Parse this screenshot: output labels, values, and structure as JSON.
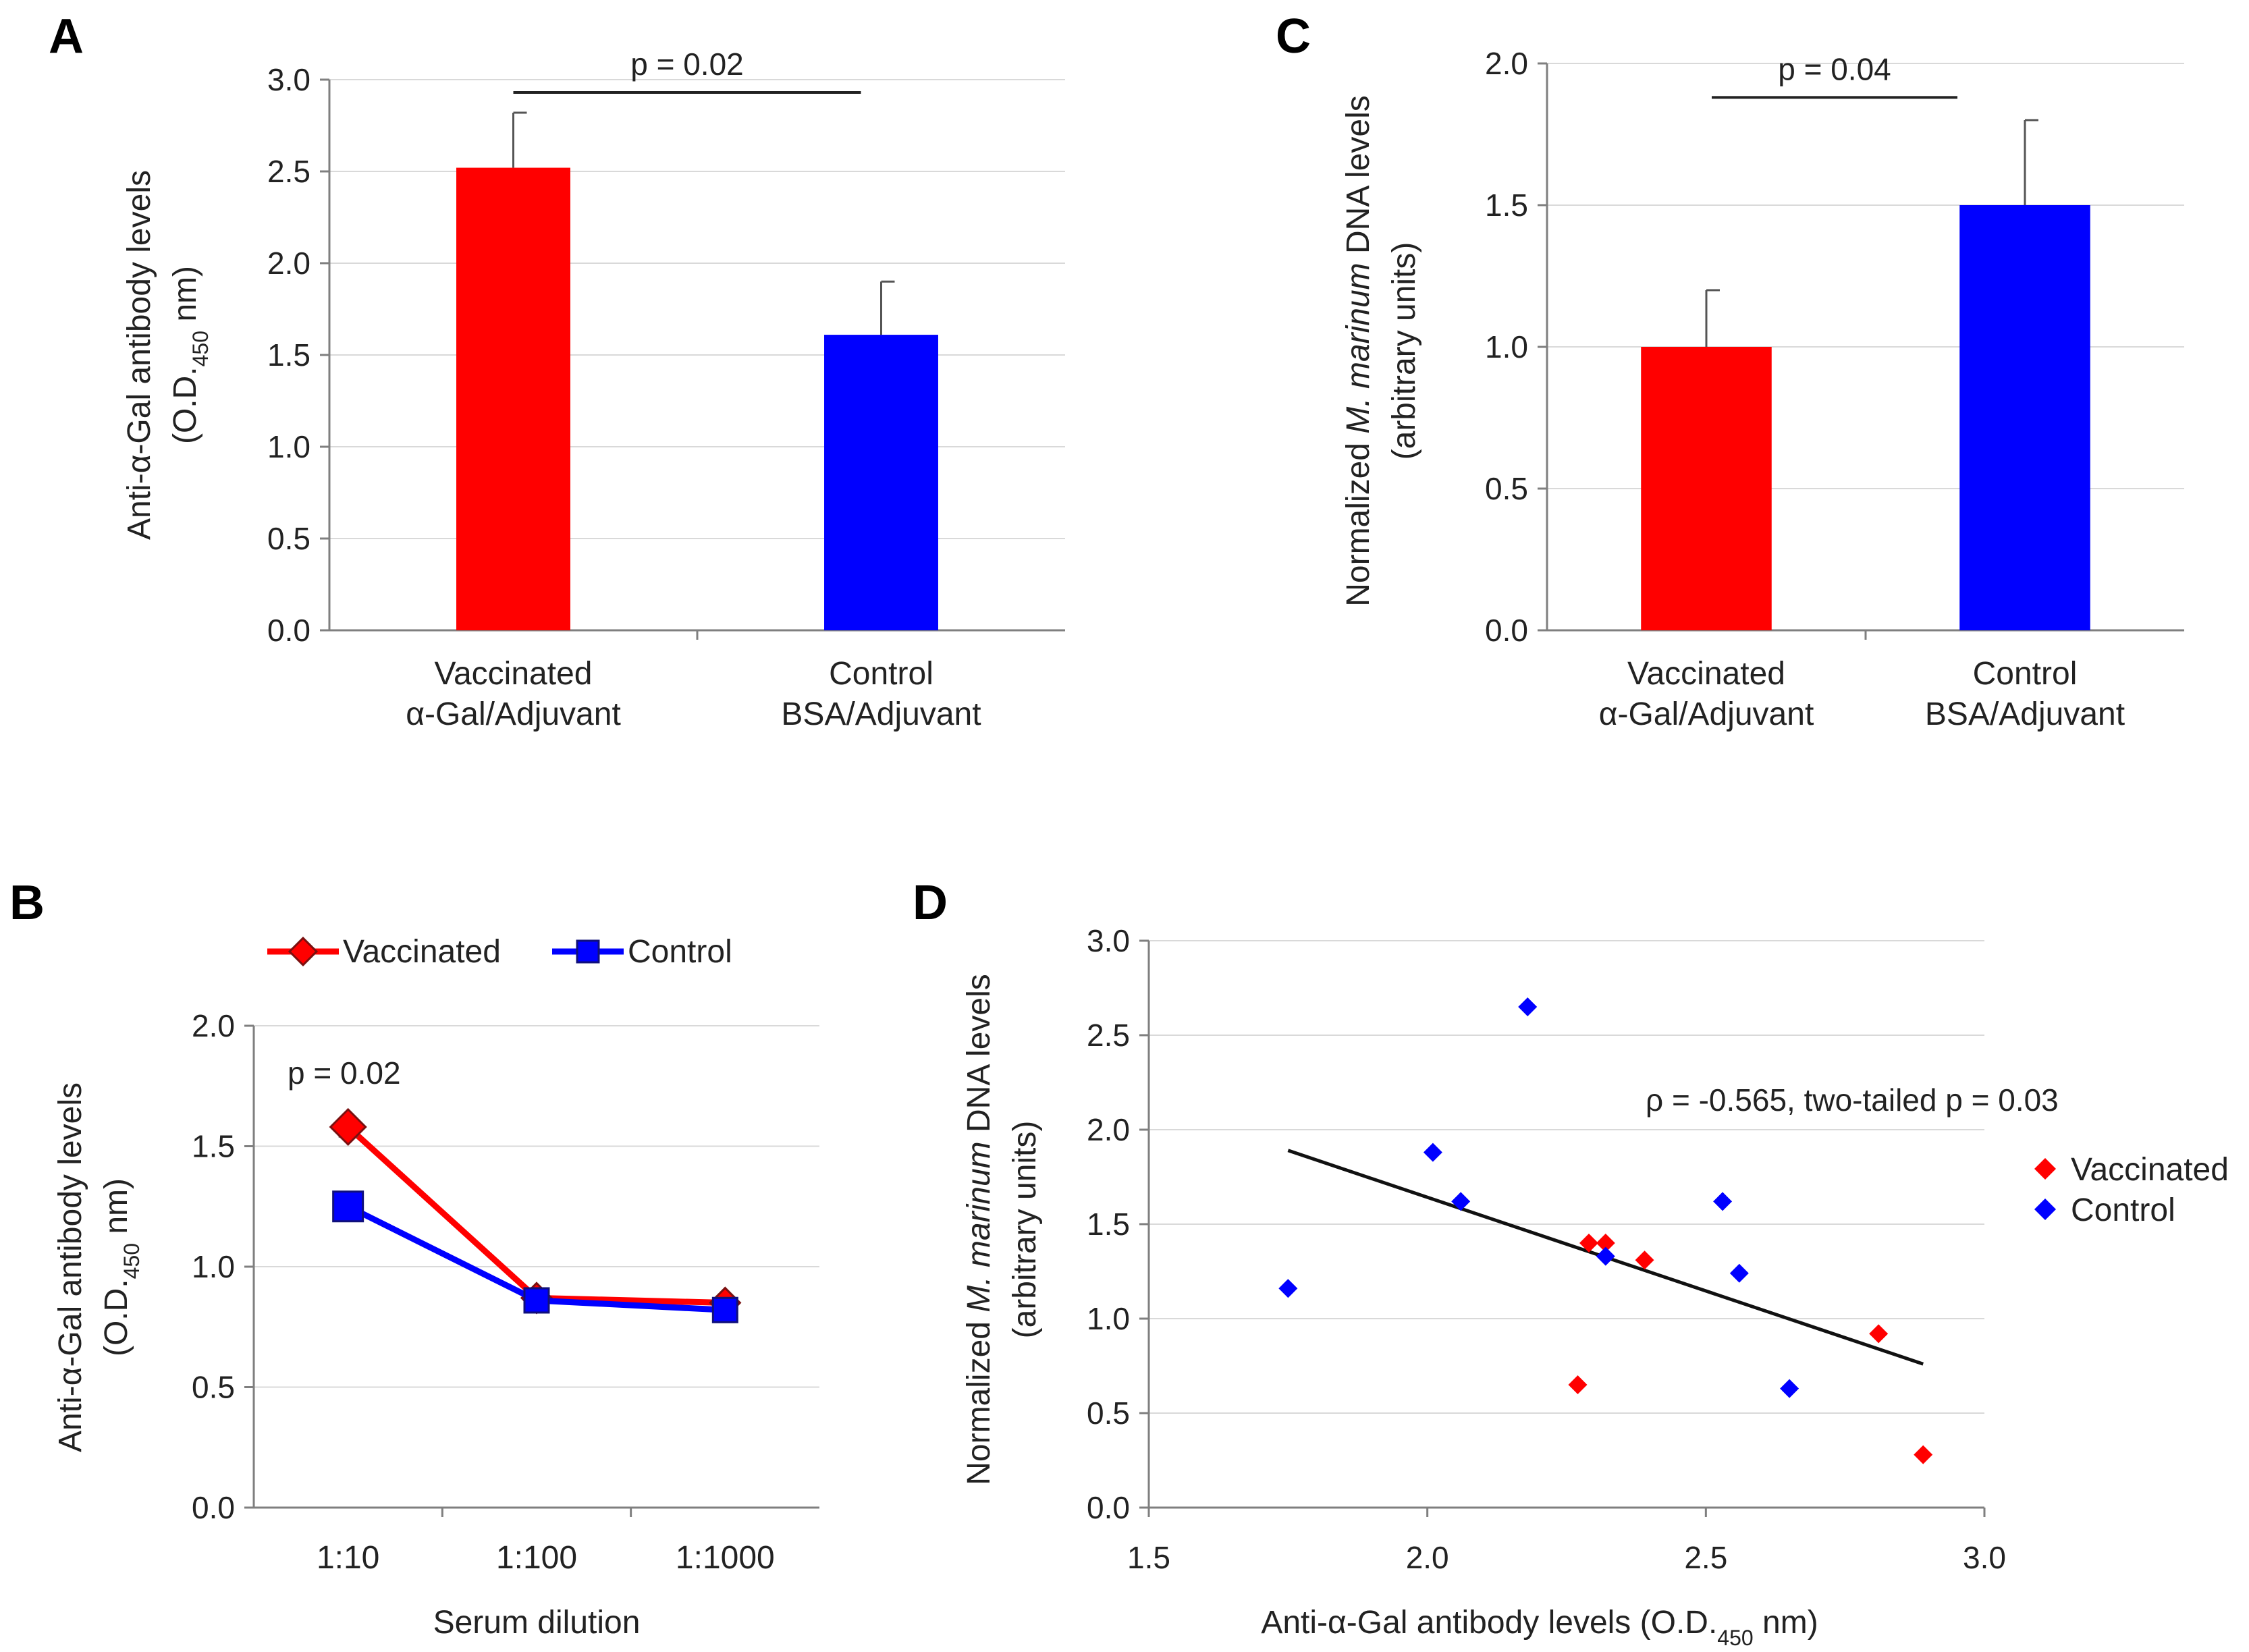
{
  "chart_data": [
    {
      "panel": "A",
      "type": "bar",
      "categories": [
        {
          "line1": "Vaccinated",
          "line2": "α-Gal/Adjuvant"
        },
        {
          "line1": "Control",
          "line2": "BSA/Adjuvant"
        }
      ],
      "values": [
        2.52,
        1.61
      ],
      "errors": [
        0.3,
        0.29
      ],
      "colors": [
        "#ff0000",
        "#0000ff"
      ],
      "ylim": [
        0,
        3.0
      ],
      "yticks": [
        "0.0",
        "0.5",
        "1.0",
        "1.5",
        "2.0",
        "2.5",
        "3.0"
      ],
      "ylabel_line1": "Anti-α-Gal antibody levels",
      "ylabel_line2_pre": "(O.D.",
      "ylabel_line2_sub": "450",
      "ylabel_line2_post": " nm)",
      "annotation": "p = 0.02",
      "grid": true
    },
    {
      "panel": "C",
      "type": "bar",
      "categories": [
        {
          "line1": "Vaccinated",
          "line2": "α-Gal/Adjuvant"
        },
        {
          "line1": "Control",
          "line2": "BSA/Adjuvant"
        }
      ],
      "values": [
        1.0,
        1.5
      ],
      "errors": [
        0.2,
        0.3
      ],
      "colors": [
        "#ff0000",
        "#0000ff"
      ],
      "ylim": [
        0,
        2.0
      ],
      "yticks": [
        "0.0",
        "0.5",
        "1.0",
        "1.5",
        "2.0"
      ],
      "ylabel_line1_pre": "Normalized ",
      "ylabel_line1_em": "M. marinum",
      "ylabel_line1_post": " DNA levels",
      "ylabel_line2": "(arbitrary units)",
      "annotation": "p = 0.04",
      "grid": true
    },
    {
      "panel": "B",
      "type": "line",
      "categories": [
        "1:10",
        "1:100",
        "1:1000"
      ],
      "series": [
        {
          "name": "Vaccinated",
          "values": [
            1.58,
            0.87,
            0.85
          ],
          "errors": [
            0.04,
            0.03,
            0.03
          ],
          "color": "#ff0000",
          "marker": "diamond"
        },
        {
          "name": "Control",
          "values": [
            1.25,
            0.86,
            0.82
          ],
          "errors": [
            0.06,
            0.04,
            0.05
          ],
          "color": "#0000ff",
          "marker": "square"
        }
      ],
      "ylim": [
        0,
        2.0
      ],
      "yticks": [
        "0.0",
        "0.5",
        "1.0",
        "1.5",
        "2.0"
      ],
      "xlabel": "Serum dilution",
      "ylabel_line1": "Anti-α-Gal antibody levels",
      "ylabel_line2_pre": "(O.D.",
      "ylabel_line2_sub": "450",
      "ylabel_line2_post": " nm)",
      "annotation": "p = 0.02",
      "legend_position": "top",
      "grid": true
    },
    {
      "panel": "D",
      "type": "scatter",
      "series": [
        {
          "name": "Vaccinated",
          "color": "#ff0000",
          "points": [
            [
              2.27,
              0.65
            ],
            [
              2.29,
              1.4
            ],
            [
              2.32,
              1.4
            ],
            [
              2.39,
              1.31
            ],
            [
              2.81,
              0.92
            ],
            [
              2.89,
              0.28
            ]
          ]
        },
        {
          "name": "Control",
          "color": "#0000ff",
          "points": [
            [
              1.75,
              1.16
            ],
            [
              2.01,
              1.88
            ],
            [
              2.06,
              1.62
            ],
            [
              2.18,
              2.65
            ],
            [
              2.32,
              1.33
            ],
            [
              2.53,
              1.62
            ],
            [
              2.56,
              1.24
            ],
            [
              2.65,
              0.63
            ]
          ]
        }
      ],
      "trendline": {
        "x": [
          1.75,
          2.89
        ],
        "y": [
          1.89,
          0.76
        ]
      },
      "xlim": [
        1.5,
        3.0
      ],
      "ylim": [
        0,
        3.0
      ],
      "xticks": [
        "1.5",
        "2.0",
        "2.5",
        "3.0"
      ],
      "yticks": [
        "0.0",
        "0.5",
        "1.0",
        "1.5",
        "2.0",
        "2.5",
        "3.0"
      ],
      "xlabel_pre": "Anti-α-Gal antibody levels (O.D.",
      "xlabel_sub": "450",
      "xlabel_post": " nm)",
      "ylabel_line1_pre": "Normalized ",
      "ylabel_line1_em": "M. marinum",
      "ylabel_line1_post": " DNA levels",
      "ylabel_line2": "(arbitrary units)",
      "annotation": "ρ  = -0.565, two-tailed p = 0.03",
      "legend_position": "right",
      "grid": true
    }
  ]
}
